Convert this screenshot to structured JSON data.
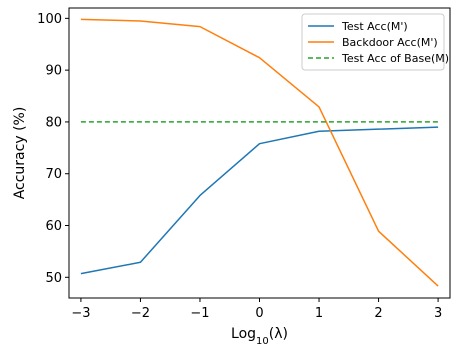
{
  "chart_data": {
    "type": "line",
    "xlabel_prefix": "Log",
    "xlabel_sub": "10",
    "xlabel_suffix": "(λ)",
    "ylabel": "Accuracy (%)",
    "x": [
      -3,
      -2,
      -1,
      0,
      1,
      2,
      3
    ],
    "xlim": [
      -3.2,
      3.2
    ],
    "ylim": [
      46,
      102
    ],
    "xticks": [
      "−3",
      "−2",
      "−1",
      "0",
      "1",
      "2",
      "3"
    ],
    "yticks": [
      50,
      60,
      70,
      80,
      90,
      100
    ],
    "legend_position": "top-right",
    "grid": false,
    "series": [
      {
        "name": "Test Acc(M')",
        "color": "#1f77b4",
        "style": "solid",
        "values": [
          50.7,
          52.9,
          65.8,
          75.8,
          78.2,
          78.6,
          79.0
        ]
      },
      {
        "name": "Backdoor Acc(M')",
        "color": "#ff7f0e",
        "style": "solid",
        "values": [
          99.8,
          99.5,
          98.4,
          92.4,
          82.9,
          58.9,
          48.3
        ]
      },
      {
        "name": "Test Acc of Base(M)",
        "color": "#2ca02c",
        "style": "dashed",
        "values": [
          80.0,
          80.0,
          80.0,
          80.0,
          80.0,
          80.0,
          80.0
        ]
      }
    ]
  }
}
